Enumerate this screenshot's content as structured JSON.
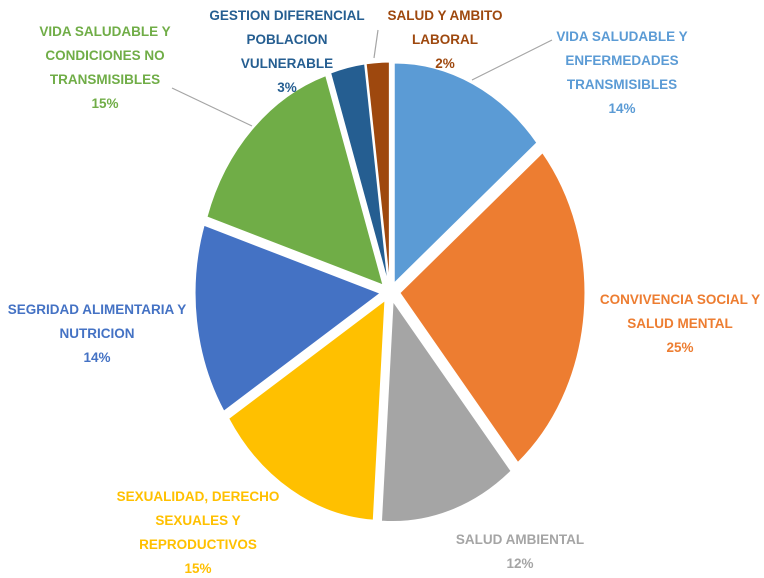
{
  "chart_data": {
    "type": "pie",
    "categories": [
      "VIDA SALUDABLE Y ENFERMEDADES TRANSMISIBLES",
      "CONVIVENCIA SOCIAL Y SALUD MENTAL",
      "SALUD AMBIENTAL",
      "SEXUALIDAD, DERECHO SEXUALES Y REPRODUCTIVOS",
      "SEGRIDAD ALIMENTARIA Y NUTRICION",
      "VIDA SALUDABLE Y CONDICIONES NO TRANSMISIBLES",
      "GESTION DIFERENCIAL POBLACION VULNERABLE",
      "SALUD Y AMBITO LABORAL"
    ],
    "values": [
      14,
      25,
      12,
      15,
      14,
      15,
      3,
      2
    ],
    "value_labels": [
      "14%",
      "25%",
      "12%",
      "15%",
      "14%",
      "15%",
      "3%",
      "2%"
    ],
    "colors": [
      "#5b9bd5",
      "#ed7d31",
      "#a5a5a5",
      "#ffc000",
      "#4472c4",
      "#70ad47",
      "#255e91",
      "#9e480e"
    ]
  }
}
